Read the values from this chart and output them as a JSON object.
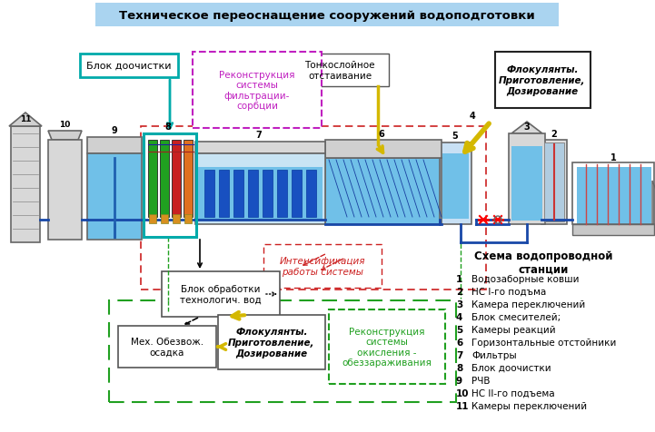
{
  "title": "Техническое переоснащение сооружений водоподготовки",
  "title_bg": "#aad4f0",
  "bg_color": "#ffffff",
  "legend_title": "Схема водопроводной\nстанции",
  "legend_items": [
    [
      "1",
      "Водозаборные ковши"
    ],
    [
      "2",
      "НС I-го подъма"
    ],
    [
      "3",
      "Камера переключений"
    ],
    [
      "4",
      "Блок смесителей;"
    ],
    [
      "5",
      "Камеры реакций"
    ],
    [
      "6",
      "Горизонтальные отстойники"
    ],
    [
      "7",
      "Фильтры"
    ],
    [
      "8",
      "Блок доочистки"
    ],
    [
      "9",
      "РЧВ"
    ],
    [
      "10",
      "НС II-го подъема"
    ],
    [
      "11",
      "Камеры переключений"
    ]
  ],
  "label_blok_doochistki": "Блок доочистки",
  "label_rekonstrukciya": "Реконструкция\nсистемы\nфильтрации-\nсорбции",
  "label_tonkoslojnoe": "Тонкослойное\nотстаивание",
  "label_flok_top": "Флокулянты.\nПриготовление,\nДозирование",
  "label_intensif": "Интенсификация\nработы системы",
  "label_blok_obr": "Блок обработки\nтехнологич. вод",
  "label_mex": "Мех. Обезвож.\nосадка",
  "label_flok_bot": "Флокулянты.\nПриготовление,\nДозирование",
  "label_rekon_okisl": "Реконструкция\nсистемы\nокисления -\nобеззараживания",
  "water_blue": "#70c0e8",
  "dark_blue": "#2060b0",
  "pipe_blue": "#1848a8"
}
